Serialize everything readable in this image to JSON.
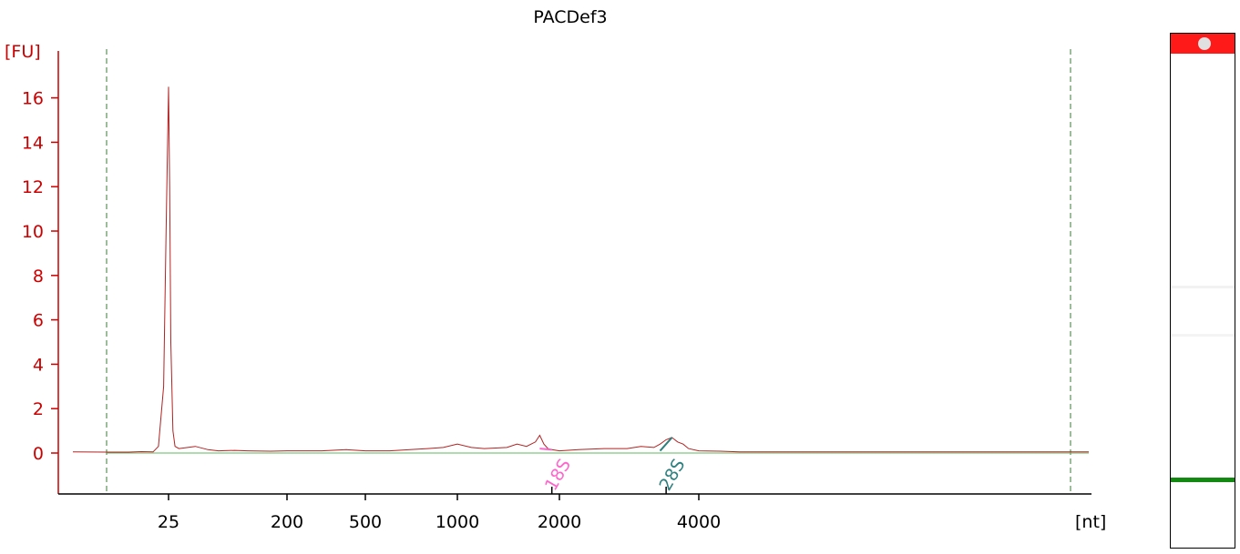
{
  "chart_data": {
    "type": "line",
    "title": "PACDef3",
    "ylabel": "[FU]",
    "xlabel": "[nt]",
    "ylim": [
      -1.8,
      18.5
    ],
    "grid": false,
    "y_ticks": [
      0,
      2,
      4,
      6,
      8,
      10,
      12,
      14,
      16
    ],
    "x_ticks": [
      "25",
      "200",
      "500",
      "1000",
      "2000",
      "4000"
    ],
    "annotations": [
      "18S",
      "28S"
    ],
    "colors": {
      "axis_y": "#cc0000",
      "trace": "#b22222",
      "baseline": "#5cb85c",
      "marker_line": "#3a7a3a",
      "label_18s": "#ff66cc",
      "label_28s": "#2f7f7f",
      "gel_top": "#ff1a1a",
      "gel_band": "#128a12"
    },
    "series": [
      {
        "x": [
          12,
          15,
          18,
          20,
          22,
          23,
          24,
          24.5,
          25,
          25.5,
          26,
          27,
          28,
          30,
          35,
          40,
          50,
          60,
          80,
          100,
          150,
          200,
          300,
          400,
          500,
          600,
          700,
          800,
          900,
          1000,
          1100,
          1200,
          1400,
          1500,
          1600,
          1700,
          1750,
          1800,
          1850,
          1900,
          2000,
          2200,
          2500,
          2800,
          3000,
          3200,
          3300,
          3400,
          3500,
          3600,
          3700,
          3800,
          4000,
          4500,
          5000,
          6000,
          8000,
          10000,
          15000,
          20000,
          25000,
          30000,
          35000
        ],
        "y": [
          0.05,
          0.04,
          0.04,
          0.06,
          0.05,
          0.3,
          3,
          10,
          16.5,
          12,
          5,
          1,
          0.3,
          0.2,
          0.25,
          0.3,
          0.15,
          0.1,
          0.12,
          0.1,
          0.08,
          0.1,
          0.1,
          0.15,
          0.1,
          0.1,
          0.15,
          0.2,
          0.25,
          0.4,
          0.25,
          0.2,
          0.25,
          0.4,
          0.3,
          0.5,
          0.8,
          0.4,
          0.2,
          0.15,
          0.1,
          0.15,
          0.2,
          0.2,
          0.3,
          0.25,
          0.4,
          0.6,
          0.7,
          0.5,
          0.4,
          0.2,
          0.1,
          0.08,
          0.05,
          0.05,
          0.05,
          0.05,
          0.05,
          0.05,
          0.05,
          0.05,
          0.05
        ]
      }
    ],
    "markers": {
      "vertical_dashed": [
        15,
        20000
      ],
      "peak_lines": [
        1900,
        3400
      ]
    }
  },
  "gel": {
    "top_band_color": "#ff1a1a",
    "marker_band_color": "#128a12"
  }
}
